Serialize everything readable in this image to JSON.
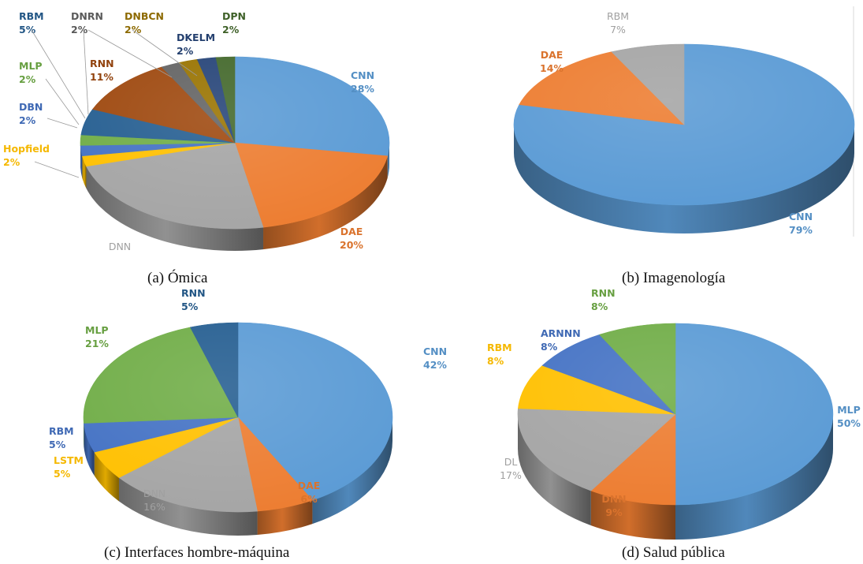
{
  "chart_data": [
    {
      "type": "pie",
      "caption": "(a)  Ómica",
      "title": "",
      "slices": [
        {
          "label": "CNN",
          "value": 28,
          "pct": "28%",
          "color": "#5b9bd5"
        },
        {
          "label": "DAE",
          "value": 20,
          "pct": "20%",
          "color": "#ed7d31"
        },
        {
          "label": "DNN",
          "value": 24,
          "pct": "",
          "color": "#a5a5a5"
        },
        {
          "label": "Hopfield",
          "value": 2,
          "pct": "2%",
          "color": "#ffc000"
        },
        {
          "label": "DBN",
          "value": 2,
          "pct": "2%",
          "color": "#4472c4"
        },
        {
          "label": "MLP",
          "value": 2,
          "pct": "2%",
          "color": "#70ad47"
        },
        {
          "label": "RBM",
          "value": 5,
          "pct": "5%",
          "color": "#255e91"
        },
        {
          "label": "RNN",
          "value": 11,
          "pct": "11%",
          "color": "#9e480e"
        },
        {
          "label": "DNRN",
          "value": 2,
          "pct": "2%",
          "color": "#636363"
        },
        {
          "label": "DNBCN",
          "value": 2,
          "pct": "2%",
          "color": "#997300"
        },
        {
          "label": "DKELM",
          "value": 2,
          "pct": "2%",
          "color": "#264478"
        },
        {
          "label": "DPN",
          "value": 2,
          "pct": "2%",
          "color": "#43682b"
        }
      ]
    },
    {
      "type": "pie",
      "caption": "(b)  Imagenología",
      "title": "",
      "slices": [
        {
          "label": "CNN",
          "value": 79,
          "pct": "79%",
          "color": "#5b9bd5"
        },
        {
          "label": "DAE",
          "value": 14,
          "pct": "14%",
          "color": "#ed7d31"
        },
        {
          "label": "RBM",
          "value": 7,
          "pct": "7%",
          "color": "#a5a5a5"
        }
      ]
    },
    {
      "type": "pie",
      "caption": "(c)  Interfaces hombre-máquina",
      "title": "",
      "slices": [
        {
          "label": "CNN",
          "value": 42,
          "pct": "42%",
          "color": "#5b9bd5"
        },
        {
          "label": "DAE",
          "value": 6,
          "pct": "6%",
          "color": "#ed7d31"
        },
        {
          "label": "DNN",
          "value": 16,
          "pct": "16%",
          "color": "#a5a5a5"
        },
        {
          "label": "LSTM",
          "value": 5,
          "pct": "5%",
          "color": "#ffc000"
        },
        {
          "label": "RBM",
          "value": 5,
          "pct": "5%",
          "color": "#4472c4"
        },
        {
          "label": "MLP",
          "value": 21,
          "pct": "21%",
          "color": "#70ad47"
        },
        {
          "label": "RNN",
          "value": 5,
          "pct": "5%",
          "color": "#255e91"
        }
      ]
    },
    {
      "type": "pie",
      "caption": "(d)  Salud pública",
      "title": "",
      "slices": [
        {
          "label": "MLP",
          "value": 50,
          "pct": "50%",
          "color": "#5b9bd5"
        },
        {
          "label": "DNN",
          "value": 9,
          "pct": "9%",
          "color": "#ed7d31"
        },
        {
          "label": "DL",
          "value": 17,
          "pct": "17%",
          "color": "#a5a5a5"
        },
        {
          "label": "RBM",
          "value": 8,
          "pct": "8%",
          "color": "#ffc000"
        },
        {
          "label": "ARNNN",
          "value": 8,
          "pct": "8%",
          "color": "#4472c4"
        },
        {
          "label": "RNN",
          "value": 8,
          "pct": "8%",
          "color": "#70ad47"
        }
      ]
    }
  ]
}
